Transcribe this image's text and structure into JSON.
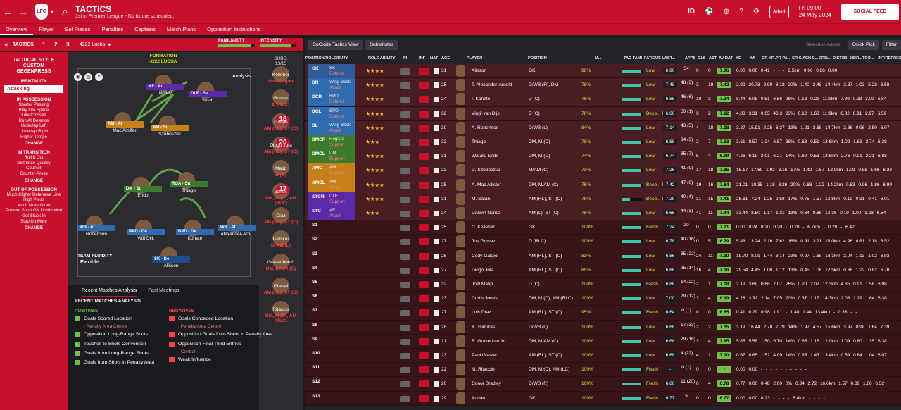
{
  "top": {
    "title": "TACTICS",
    "subtitle": "1st in Premier League - No fixture scheduled.",
    "crest": "LFC",
    "ball": "Arbeit",
    "id_label": "ID",
    "date": "Fri 09:00",
    "date2": "24 May 2024",
    "social": "SOCIAL FEED"
  },
  "tabs": [
    "Overview",
    "Player",
    "Set Pieces",
    "Penalties",
    "Captains",
    "Match Plans",
    "Opposition Instructions"
  ],
  "tacbar": {
    "label": "TACTICS",
    "nums": [
      "1",
      "2",
      "3"
    ],
    "formation_name": "4222 Lucha",
    "familiarity": "FAMILIARITY",
    "intensity": "INTENSITY",
    "familiarity_level": 0.9,
    "intensity_level": 0.85
  },
  "left": {
    "style_lines": [
      "TACTICAL STYLE",
      "CUSTOM",
      "GEGENPRESS"
    ],
    "mentality": "MENTALITY",
    "mentality_value": "Attacking",
    "possession": {
      "head": "IN POSSESSION",
      "items": [
        "Shorter Passing",
        "Play Into Space",
        "Low Crosses",
        "Run At Defence",
        "Underlap Left",
        "Underlap Right",
        "Higher Tempo"
      ]
    },
    "transition": {
      "head": "IN TRANSITION",
      "items": [
        "Roll It Out",
        "Distribute Quickly",
        "Counter",
        "Counter-Press"
      ]
    },
    "oop": {
      "head": "OUT OF POSSESSION",
      "items": [
        "Much Higher Defensive Line",
        "High Press",
        "Much More Often",
        "Prevent Short GK Distribution",
        "Get Stuck In",
        "Step Up More"
      ]
    },
    "change": "CHANGE"
  },
  "pitch": {
    "formation_label": "FORMATION",
    "formation": "4222 LUCHA",
    "analysis": "Analysis",
    "fluidity_label": "TEAM FLUIDITY",
    "fluidity": "Flexible",
    "players": [
      {
        "strip": "AF - At",
        "name": "Núñez",
        "color": "#5b2aa8"
      },
      {
        "strip": "DLF - Su",
        "name": "Salah",
        "color": "#5b2aa8"
      },
      {
        "strip": "AM - At",
        "name": "Mac Allister",
        "color": "#c7811a"
      },
      {
        "strip": "AM - Su",
        "name": "Szoboszlai",
        "color": "#c7811a"
      },
      {
        "strip": "DM - Su",
        "name": "Endo",
        "color": "#3e7a2b"
      },
      {
        "strip": "RGA - Su",
        "name": "Thiago",
        "color": "#3e7a2b"
      },
      {
        "strip": "WB - At",
        "name": "Robertson",
        "color": "#2f6bb0"
      },
      {
        "strip": "BPD - De",
        "name": "Van Dijk",
        "color": "#2f6bb0"
      },
      {
        "strip": "BPD - De",
        "name": "Konaté",
        "color": "#2f6bb0"
      },
      {
        "strip": "WB - At",
        "name": "Alexander-Arn...",
        "color": "#2f6bb0"
      },
      {
        "strip": "SK - De",
        "name": "Alisson",
        "color": "#1f4f8b"
      }
    ]
  },
  "subs": {
    "head": "SUBS:",
    "count": "13/15",
    "items": [
      {
        "name": "Kelleher",
        "pos": "Goalkeeper",
        "num": ""
      },
      {
        "name": "Gomez",
        "pos": "D (RLC)",
        "num": ""
      },
      {
        "name": "Gakpo",
        "pos": "AM (RL), ST (C)",
        "num": "18"
      },
      {
        "name": "Diogo Jota",
        "pos": "AM (RL), ST (C)",
        "num": "20"
      },
      {
        "name": "Matip",
        "pos": "D (C)",
        "num": ""
      },
      {
        "name": "Jones",
        "pos": "DM, M (C), AM (RLC)",
        "num": "17"
      },
      {
        "name": "Díaz",
        "pos": "AM (RL), ST (C)",
        "num": ""
      },
      {
        "name": "Tsimikas",
        "pos": "D/WB (L)",
        "num": ""
      },
      {
        "name": "Gravenberch",
        "pos": "DM, M/AM (C)",
        "num": ""
      },
      {
        "name": "Glatzel",
        "pos": "AM (RL), ST (C)",
        "num": ""
      },
      {
        "name": "Ritaccio",
        "pos": "DM, M (C), AM (RLC)",
        "num": ""
      }
    ]
  },
  "recent": {
    "tab1": "Recent Matches Analysis",
    "tab2": "Past Meetings",
    "head": "RECENT MATCHES ANALYSIS",
    "pos_head": "POSITIVES",
    "neg_head": "NEGATIVES",
    "positives": [
      {
        "t": "Goals Scored Location",
        "s": "- Penalty Area Centre"
      },
      {
        "t": "Opposition Long-Range Shots",
        "s": ""
      },
      {
        "t": "Touches to Shots Conversion",
        "s": ""
      },
      {
        "t": "Goals from Long-Range Shots",
        "s": ""
      },
      {
        "t": "Goals from Shots in Penalty Area",
        "s": ""
      }
    ],
    "negatives": [
      {
        "t": "Goals Conceded Location",
        "s": "- Penalty Area Centre"
      },
      {
        "t": "Opposition Goals from Shots in Penalty Area",
        "s": ""
      },
      {
        "t": "Opposition Final Third Entries",
        "s": "- Central"
      },
      {
        "t": "Weak Influence",
        "s": ""
      }
    ]
  },
  "right": {
    "view": "CoOxide Tactics View",
    "substitutes": "Substitutes",
    "selection": "Selection Advice",
    "quickpick": "Quick Pick",
    "filter": "Filter",
    "headers": [
      "POSITION/ROLE/DUTY",
      "ROLE ABILITY",
      "PI",
      "INF",
      "NAT",
      "AGE",
      "PLAYER",
      "POSITION",
      "M...",
      "TAC FAMI",
      "FATIGUE LAST...",
      "APPS",
      "GLS",
      "AST",
      "AV RAT",
      "XG",
      "XA",
      "OP-KP...",
      "PR PA...",
      "CR C/A",
      "CH C...",
      "DRB/...",
      "DIST/90",
      "HDR...",
      "TCO...",
      "INT/REPRES..."
    ],
    "rows": [
      {
        "slot": "GK",
        "role": "SK",
        "duty": "Defend",
        "sc": "#2f5c99",
        "stars": "★★★★",
        "age": "31",
        "name": "Alisson",
        "pos": "GK",
        "pct": "96%",
        "fat": "Low",
        "rat": "6.90",
        "apps": "54",
        "gls": "0",
        "ast": "0",
        "av": "7.06",
        "tail": "0.00  0.00  0.41  -  -  -  6.5km  0.96  0.26  0.00",
        "fam": 0.9
      },
      {
        "slot": "DR",
        "role": "Wing-Back",
        "duty": "Attack",
        "sc": "#2f6bb0",
        "stars": "★★★★",
        "age": "25",
        "name": "T. Alexander-Arnold",
        "pos": "D/WB (R), DM",
        "pct": "78%",
        "fat": "Low",
        "rat": "7.48",
        "apps": "48 (3)",
        "gls": "3",
        "ast": "19",
        "av": "7.42",
        "tail": "2.92  20.78  2.90  8.18  20%  1.40  2.48  14.4km  2.87  1.03  5.28  6.58",
        "fam": 0.9
      },
      {
        "slot": "DCR",
        "role": "BPD",
        "duty": "Defend",
        "sc": "#2f6bb0",
        "stars": "★★★★",
        "age": "24",
        "name": "I. Konaté",
        "pos": "D (C)",
        "pct": "78%",
        "fat": "Low",
        "rat": "6.88",
        "apps": "46 (6)",
        "gls": "10",
        "ast": "3",
        "av": "7.24",
        "tail": "8.44  6.08  0.51  6.56  28%  0.18  0.21  11.9km  7.89  0.98  3.09  6.84",
        "fam": 0.9
      },
      {
        "slot": "DCL",
        "role": "BPD",
        "duty": "Defend",
        "sc": "#2f6bb0",
        "stars": "★★★★",
        "age": "32",
        "name": "Virgil van Dijk",
        "pos": "D (C)",
        "pct": "76%",
        "fat": "Beco... Fatig...",
        "rat": "6.80",
        "apps": "50 (1)",
        "gls": "9",
        "ast": "2",
        "av": "7.12",
        "tail": "4.83  3.31  0.65  46.3  23%  0.12  1.63  11.9km  6.82  0.91  2.97  6.59",
        "fam": 0.9
      },
      {
        "slot": "DL",
        "role": "Wing-Back",
        "duty": "Attack",
        "sc": "#2f6bb0",
        "stars": "★★★★",
        "age": "30",
        "name": "A. Robertson",
        "pos": "D/WB (L)",
        "pct": "84%",
        "fat": "Low",
        "rat": "7.14",
        "apps": "43 (5)",
        "gls": "4",
        "ast": "18",
        "av": "7.18",
        "tail": "3.27  15.91  2.25  6.27  13%  1.21  3.68  14.7km  2.36  0.96  2.50  6.07",
        "fam": 0.9
      },
      {
        "slot": "DMCR",
        "role": "Regista",
        "duty": "Support",
        "sc": "#3e7a2b",
        "stars": "★★★",
        "age": "33",
        "name": "Thiago",
        "pos": "DM, M (C)",
        "pct": "78%",
        "fat": "Low",
        "rat": "6.88",
        "apps": "34 (3)",
        "gls": "2",
        "ast": "7",
        "av": "7.13",
        "tail": "3.61  8.57  1.24  6.57  38%  0.63  0.51  13.6km  1.02  1.63  2.74  6.28",
        "fam": 0.9
      },
      {
        "slot": "DMCL",
        "role": "DM",
        "duty": "Support",
        "sc": "#3e7a2b",
        "stars": "★★★★",
        "age": "31",
        "name": "Wataru Endo",
        "pos": "DM, M (C)",
        "pct": "74%",
        "fat": "Low",
        "rat": "6.74",
        "apps": "35 (7)",
        "gls": "5",
        "ast": "4",
        "av": "6.99",
        "tail": "4.26  6.19  2.01  6.21  14%  0.60  0.53  13.5km  2.76  0.91  2.21  6.88",
        "fam": 0.9
      },
      {
        "slot": "AMC",
        "role": "AM",
        "duty": "Support",
        "sc": "#c7811a",
        "stars": "★★★★",
        "age": "23",
        "name": "D. Szoboszlai",
        "pos": "M/AM (C)",
        "pct": "73%",
        "fat": "Low",
        "rat": "7.26",
        "apps": "41 (9)",
        "gls": "17",
        "ast": "18",
        "av": "7.35",
        "tail": "15.17  17.69  1.92  3.16  17%  1.42  1.67  13.9km  1.09  0.88  1.66  6.28",
        "fam": 0.9
      },
      {
        "slot": "AMCL",
        "role": "AM",
        "duty": "Attack",
        "sc": "#c7811a",
        "stars": "★★★★",
        "age": "25",
        "name": "A. Mac Allister",
        "pos": "DM, M/AM (C)",
        "pct": "75%",
        "fat": "Beco... Fatig...",
        "rat": "7.42",
        "apps": "47 (6)",
        "gls": "19",
        "ast": "16",
        "av": "7.64",
        "tail": "21.01  10.35  1.18  3.26  20%  0.68  1.22  14.2km  0.83  0.96  1.86  6.99",
        "fam": 0.9
      },
      {
        "slot": "STCR",
        "role": "DLF",
        "duty": "Support",
        "sc": "#5b2aa8",
        "stars": "★★★★",
        "age": "31",
        "name": "M. Salah",
        "pos": "AM (RL), ST (C)",
        "pct": "79%",
        "fat": "Beco... Fatig...",
        "rat": "7.29",
        "apps": "40 (4)",
        "gls": "31",
        "ast": "15",
        "av": "7.41",
        "tail": "28.61  7.24  1.25  2.58  17%  0.75  1.57  12.8km  0.19  0.31  0.41  6.01",
        "fam": 0.4
      },
      {
        "slot": "STC",
        "role": "AF",
        "duty": "Attack",
        "sc": "#5b2aa8",
        "stars": "★★★",
        "age": "24",
        "name": "Darwin Núñez",
        "pos": "AM (L), ST (C)",
        "pct": "78%",
        "fat": "Low",
        "rat": "6.68",
        "apps": "44 (3)",
        "gls": "41",
        "ast": "11",
        "av": "7.44",
        "tail": "33.44  8.80  1.17  1.31  13%  0.64  0.86  12.36  0.19  1.00  1.23  6.54",
        "fam": 0.9
      },
      {
        "slot": "S1",
        "role": "",
        "duty": "",
        "sc": "",
        "stars": "",
        "age": "25",
        "name": "C. Kelleher",
        "pos": "GK",
        "pct": "100%",
        "fat": "Fresh",
        "rat": "7.24",
        "apps": "20",
        "gls": "0",
        "ast": "0",
        "av": "7.21",
        "tail": "0.00  0.24  0.20  0.20  -  0.20  -  6.7km  -  0.20  -  6.42",
        "fam": 0.9
      },
      {
        "slot": "S2",
        "role": "",
        "duty": "",
        "sc": "",
        "stars": "",
        "age": "27",
        "name": "Joe Gomez",
        "pos": "D (RLC)",
        "pct": "100%",
        "fat": "Low",
        "rat": "6.78",
        "apps": "40 (16)",
        "gls": "0",
        "ast": "5",
        "av": "6.79",
        "tail": "5.48  13.24  2.16  7.62  16%  0.91  3.21  13.0km  4.96  0.81  2.18  6.52",
        "fam": 0.9
      },
      {
        "slot": "S3",
        "role": "",
        "duty": "",
        "sc": "",
        "stars": "",
        "age": "25",
        "name": "Cody Gakpo",
        "pos": "AM (RL), ST (C)",
        "pct": "83%",
        "fat": "Low",
        "rat": "6.86",
        "apps": "35 (22)",
        "gls": "24",
        "ast": "11",
        "av": "7.10",
        "tail": "19.70  8.09  1.44  3.14  23%  0.97  1.68  13.3km  2.04  1.13  1.02  6.93",
        "fam": 0.9
      },
      {
        "slot": "S4",
        "role": "",
        "duty": "",
        "sc": "",
        "stars": "",
        "age": "27",
        "name": "Diogo Jota",
        "pos": "AM (RL), ST (C)",
        "pct": "89%",
        "fat": "Low",
        "rat": "6.88",
        "apps": "25 (14)",
        "gls": "16",
        "ast": "4",
        "av": "7.06",
        "tail": "29.54  4.45  1.00  1.12  13%  0.45  1.06  12.5km  0.68  1.22  0.82  6.70",
        "fam": 0.9
      },
      {
        "slot": "S5",
        "role": "",
        "duty": "",
        "sc": "",
        "stars": "",
        "age": "32",
        "name": "Joël Matip",
        "pos": "D (C)",
        "pct": "100%",
        "fat": "Fresh",
        "rat": "6.88",
        "apps": "14 (22)",
        "gls": "2",
        "ast": "1",
        "av": "7.08",
        "tail": "2.19  3.69  0.66  7.07  26%  0.20  2.07  12.3km  4.35  0.91  1.58  6.98",
        "fam": 0.9
      },
      {
        "slot": "S6",
        "role": "",
        "duty": "",
        "sc": "",
        "stars": "",
        "age": "23",
        "name": "Curtis Jones",
        "pos": "DM, M (C), AM (RLC)",
        "pct": "100%",
        "fat": "Low",
        "rat": "7.00",
        "apps": "29 (12)",
        "gls": "3",
        "ast": "4",
        "av": "6.99",
        "tail": "4.28  3.32  2.14  7.05  20%  0.37  1.17  14.3km  2.03  1.29  1.64  6.38",
        "fam": 0.9
      },
      {
        "slot": "S7",
        "role": "",
        "duty": "",
        "sc": "",
        "stars": "",
        "age": "27",
        "name": "Luis Díaz",
        "pos": "AM (RL), ST (C)",
        "pct": "95%",
        "fat": "Fresh",
        "rat": "6.64",
        "apps": "0 (1)",
        "gls": "0",
        "ast": "0",
        "av": "6.65",
        "tail": "0.41  0.29  0.96  1.91  -  1.48  1.44  13.4km  -  0.38  -  -",
        "fam": 0.9
      },
      {
        "slot": "S8",
        "role": "",
        "duty": "",
        "sc": "",
        "stars": "",
        "age": "28",
        "name": "K. Tsimikas",
        "pos": "D/WB (L)",
        "pct": "100%",
        "fat": "Low",
        "rat": "6.68",
        "apps": "17 (33)",
        "gls": "2",
        "ast": "2",
        "av": "7.05",
        "tail": "3.19  16.44  2.78  7.79  14%  1.97  4.57  15.6km  3.97  0.98  1.64  7.39",
        "fam": 0.9
      },
      {
        "slot": "S9",
        "role": "",
        "duty": "",
        "sc": "",
        "stars": "",
        "age": "21",
        "name": "R. Gravenberch",
        "pos": "DM, M/AM (C)",
        "pct": "100%",
        "fat": "Low",
        "rat": "6.68",
        "apps": "29 (16)",
        "gls": "3",
        "ast": "4",
        "av": "7.85",
        "tail": "5.85  5.58  1.50  5.70  14%  0.65  1.16  12.0km  1.09  0.80  1.35  6.38",
        "fam": 0.9
      },
      {
        "slot": "S10",
        "role": "",
        "duty": "",
        "sc": "",
        "stars": "",
        "age": "23",
        "name": "Paul Glatzel",
        "pos": "AM (RL), ST (C)",
        "pct": "100%",
        "fat": "Low",
        "rat": "6.68",
        "apps": "4 (22)",
        "gls": "4",
        "ast": "1",
        "av": "7.10",
        "tail": "0.67  0.65  1.52  4.09  14%  0.95  1.43  13.4km  0.59  0.64  1.04  6.07",
        "fam": 0.9
      },
      {
        "slot": "S11",
        "role": "",
        "duty": "",
        "sc": "",
        "stars": "",
        "age": "22",
        "name": "M. Ritaccio",
        "pos": "DM, M (C), AM (LC)",
        "pct": "100%",
        "fat": "Fresh",
        "rat": "-",
        "apps": "0 (1)",
        "gls": "0",
        "ast": "0",
        "av": "-",
        "tail": "0.00  0.00  -  -  -  -  -  -  -  -  -  -",
        "fam": 0.9
      },
      {
        "slot": "S12",
        "role": "",
        "duty": "",
        "sc": "",
        "stars": "",
        "age": "20",
        "name": "Conor Bradley",
        "pos": "D/WB (R)",
        "pct": "100%",
        "fat": "Fresh",
        "rat": "6.80",
        "apps": "11 (20)",
        "gls": "0",
        "ast": "4",
        "av": "6.78",
        "tail": "6.77  0.00  0.48  2.00  0%  0.34  2.72  16.6km  1.57  0.89  1.86  6.52",
        "fam": 0.9
      },
      {
        "slot": "S13",
        "role": "",
        "duty": "",
        "sc": "",
        "stars": "",
        "age": "29",
        "name": "Adrián",
        "pos": "GK",
        "pct": "100%",
        "fat": "Fresh",
        "rat": "6.77",
        "apps": "9",
        "gls": "0",
        "ast": "0",
        "av": "6.77",
        "tail": "0.00  0.00  0.23  -  -  -  -  6.4km  -  -  -  -",
        "fam": 0.9
      }
    ]
  },
  "colors": {
    "brand": "#c8102e",
    "panel": "#23232a"
  }
}
